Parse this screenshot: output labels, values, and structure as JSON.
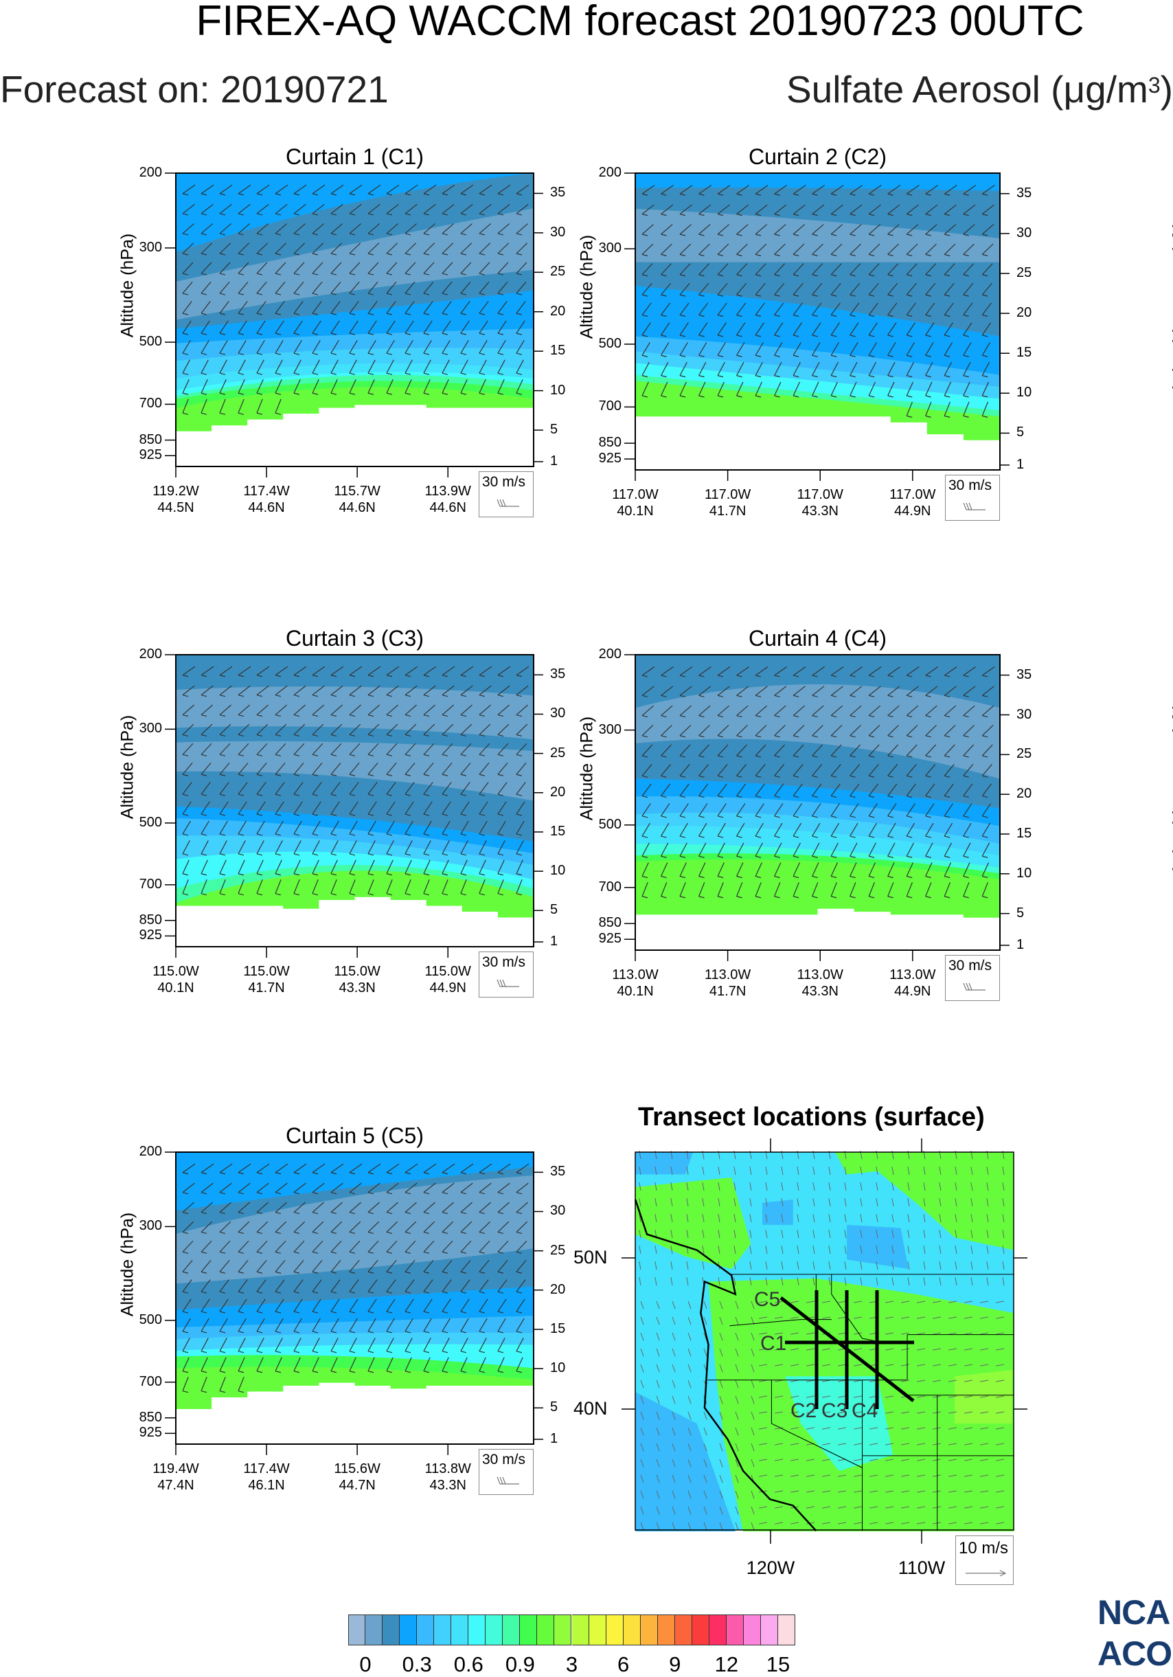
{
  "header": {
    "title": "FIREX-AQ WACCM forecast 20190723 00UTC",
    "forecast_on": "Forecast on: 20190721",
    "variable_prefix": "Sulfate Aerosol (μg/m",
    "variable_sup": "3",
    "variable_suffix": ")"
  },
  "axis_labels": {
    "left": "Altitude (hPa)",
    "right": "Height (thousand ft)"
  },
  "curtains": [
    {
      "title": "Curtain 1 (C1)",
      "ref_vector": "30 m/s",
      "pressure_ticks": [
        "200",
        "300",
        "500",
        "700",
        "850",
        "925"
      ],
      "height_ticks": [
        "35",
        "30",
        "25",
        "20",
        "15",
        "10",
        "5",
        "1"
      ],
      "x_ticks": [
        {
          "lon": "119.2W",
          "lat": "44.5N"
        },
        {
          "lon": "117.4W",
          "lat": "44.6N"
        },
        {
          "lon": "115.7W",
          "lat": "44.6N"
        },
        {
          "lon": "113.9W",
          "lat": "44.6N"
        }
      ]
    },
    {
      "title": "Curtain 2 (C2)",
      "ref_vector": "30 m/s",
      "pressure_ticks": [
        "200",
        "300",
        "500",
        "700",
        "850",
        "925"
      ],
      "height_ticks": [
        "35",
        "30",
        "25",
        "20",
        "15",
        "10",
        "5",
        "1"
      ],
      "x_ticks": [
        {
          "lon": "117.0W",
          "lat": "40.1N"
        },
        {
          "lon": "117.0W",
          "lat": "41.7N"
        },
        {
          "lon": "117.0W",
          "lat": "43.3N"
        },
        {
          "lon": "117.0W",
          "lat": "44.9N"
        }
      ]
    },
    {
      "title": "Curtain 3 (C3)",
      "ref_vector": "30 m/s",
      "pressure_ticks": [
        "200",
        "300",
        "500",
        "700",
        "850",
        "925"
      ],
      "height_ticks": [
        "35",
        "30",
        "25",
        "20",
        "15",
        "10",
        "5",
        "1"
      ],
      "x_ticks": [
        {
          "lon": "115.0W",
          "lat": "40.1N"
        },
        {
          "lon": "115.0W",
          "lat": "41.7N"
        },
        {
          "lon": "115.0W",
          "lat": "43.3N"
        },
        {
          "lon": "115.0W",
          "lat": "44.9N"
        }
      ]
    },
    {
      "title": "Curtain 4 (C4)",
      "ref_vector": "30 m/s",
      "pressure_ticks": [
        "200",
        "300",
        "500",
        "700",
        "850",
        "925"
      ],
      "height_ticks": [
        "35",
        "30",
        "25",
        "20",
        "15",
        "10",
        "5",
        "1"
      ],
      "x_ticks": [
        {
          "lon": "113.0W",
          "lat": "40.1N"
        },
        {
          "lon": "113.0W",
          "lat": "41.7N"
        },
        {
          "lon": "113.0W",
          "lat": "43.3N"
        },
        {
          "lon": "113.0W",
          "lat": "44.9N"
        }
      ]
    },
    {
      "title": "Curtain 5 (C5)",
      "ref_vector": "30 m/s",
      "pressure_ticks": [
        "200",
        "300",
        "500",
        "700",
        "850",
        "925"
      ],
      "height_ticks": [
        "35",
        "30",
        "25",
        "20",
        "15",
        "10",
        "5",
        "1"
      ],
      "x_ticks": [
        {
          "lon": "119.4W",
          "lat": "47.4N"
        },
        {
          "lon": "117.4W",
          "lat": "46.1N"
        },
        {
          "lon": "115.6W",
          "lat": "44.7N"
        },
        {
          "lon": "113.8W",
          "lat": "43.3N"
        }
      ]
    }
  ],
  "map": {
    "title": "Transect locations (surface)",
    "lat_ticks": [
      "50N",
      "40N"
    ],
    "lon_ticks": [
      "120W",
      "110W"
    ],
    "ref_vector": "10 m/s",
    "transect_labels": [
      "C1",
      "C2",
      "C3",
      "C4",
      "C5"
    ]
  },
  "chart_data": {
    "type": "heatmap",
    "colorbar": {
      "colors": [
        "#9ab8d8",
        "#6aa4cc",
        "#3a8ebf",
        "#0ca4fc",
        "#38bafc",
        "#42d0fc",
        "#42e2fc",
        "#42fafc",
        "#42fcdc",
        "#42fca8",
        "#42fc50",
        "#66fc3c",
        "#90fc3c",
        "#b8fc3c",
        "#e0fc3c",
        "#fcf43c",
        "#fce03c",
        "#fcb43c",
        "#fc8e3c",
        "#fc643c",
        "#fc3c3c",
        "#fc2e64",
        "#fc5aaa",
        "#fc84dc",
        "#fcaaf0",
        "#fcdce0"
      ],
      "labels": [
        "0",
        "0.3",
        "0.6",
        "0.9",
        "3",
        "6",
        "9",
        "12",
        "15"
      ]
    },
    "y_scale": "log-pressure",
    "ylim_hpa": [
      200,
      980
    ]
  },
  "logo": {
    "line1": "NCA",
    "line2": "ACO"
  }
}
